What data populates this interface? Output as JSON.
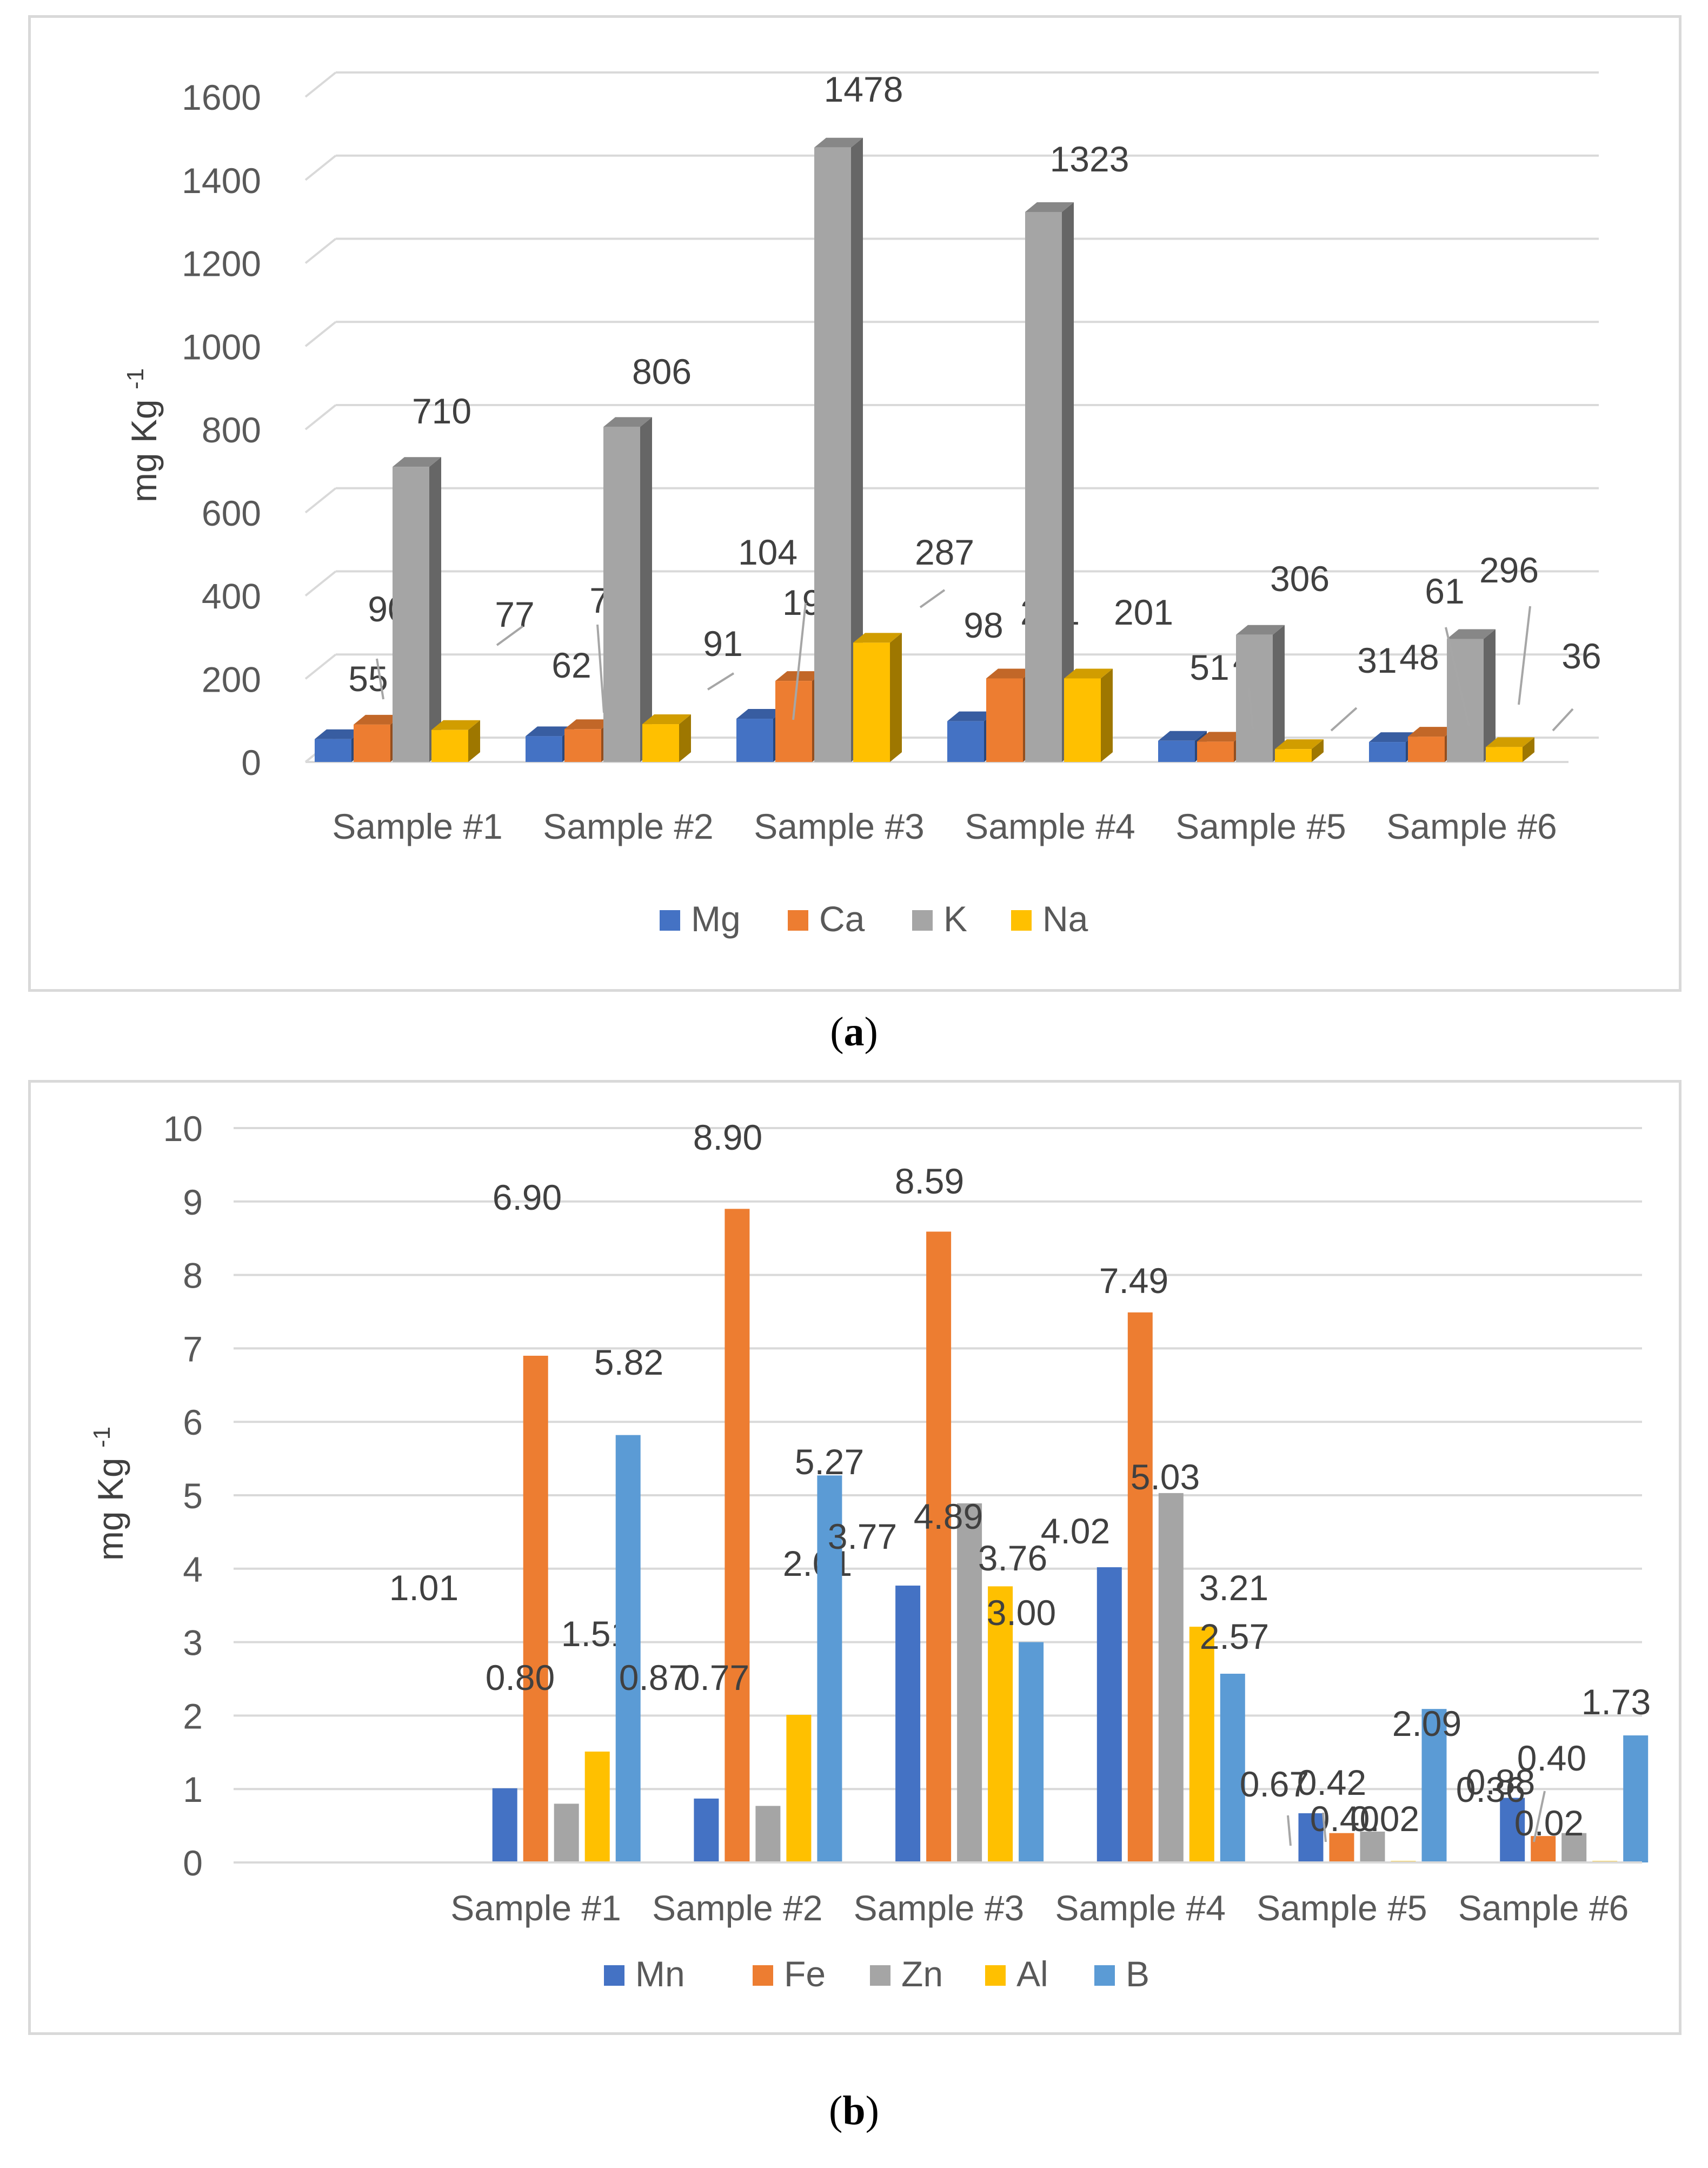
{
  "captions": {
    "a": "a",
    "b": "b"
  },
  "chart_data": [
    {
      "type": "bar",
      "style": "3d-clustered-column",
      "title": "",
      "xlabel": "",
      "ylabel": "mg Kg",
      "ylabel_sup": "-1",
      "ylim": [
        0,
        1600
      ],
      "yticks": [
        0,
        200,
        400,
        600,
        800,
        1000,
        1200,
        1400,
        1600
      ],
      "grid": true,
      "legend_position": "bottom",
      "categories": [
        "Sample #1",
        "Sample #2",
        "Sample #3",
        "Sample #4",
        "Sample #5",
        "Sample #6"
      ],
      "series": [
        {
          "name": "Mg",
          "color": "#4472c4",
          "values": [
            55,
            62,
            104,
            98,
            51,
            48
          ]
        },
        {
          "name": "Ca",
          "color": "#ed7d31",
          "values": [
            90,
            79,
            195,
            201,
            49,
            61
          ]
        },
        {
          "name": "K",
          "color": "#a5a5a5",
          "values": [
            710,
            806,
            1478,
            1323,
            306,
            296
          ]
        },
        {
          "name": "Na",
          "color": "#ffc000",
          "values": [
            77,
            91,
            287,
            201,
            31,
            36
          ]
        }
      ],
      "data_labels": [
        [
          "55",
          "62",
          "104",
          "98",
          "51",
          "48"
        ],
        [
          "90",
          "79",
          "195",
          "201",
          "49",
          "61"
        ],
        [
          "710",
          "806",
          "1478",
          "1323",
          "306",
          "296"
        ],
        [
          "77",
          "91",
          "287",
          "201",
          "31",
          "36"
        ]
      ]
    },
    {
      "type": "bar",
      "style": "clustered-column",
      "title": "",
      "xlabel": "",
      "ylabel": "mg Kg",
      "ylabel_sup": "-1",
      "ylim": [
        0,
        10
      ],
      "yticks": [
        0,
        1,
        2,
        3,
        4,
        5,
        6,
        7,
        8,
        9,
        10
      ],
      "grid": true,
      "legend_position": "bottom",
      "categories": [
        "",
        "Sample #1",
        "Sample #2",
        "Sample #3",
        "Sample #4",
        "Sample #5",
        "Sample #6"
      ],
      "series": [
        {
          "name": "Mn",
          "color": "#4472c4",
          "values": [
            null,
            1.01,
            0.87,
            3.77,
            4.02,
            0.67,
            0.88
          ]
        },
        {
          "name": "Fe",
          "color": "#ed7d31",
          "values": [
            null,
            6.9,
            8.9,
            8.59,
            7.49,
            0.4,
            0.36
          ]
        },
        {
          "name": "Zn",
          "color": "#a5a5a5",
          "values": [
            null,
            0.8,
            0.77,
            4.89,
            5.03,
            0.42,
            0.4
          ]
        },
        {
          "name": "Al",
          "color": "#ffc000",
          "values": [
            null,
            1.51,
            2.01,
            3.76,
            3.21,
            0.02,
            0.02
          ]
        },
        {
          "name": "B",
          "color": "#5b9bd5",
          "values": [
            null,
            5.82,
            5.27,
            3.0,
            2.57,
            2.09,
            1.73
          ]
        }
      ],
      "data_labels": [
        [
          "",
          "1.01",
          "0.87",
          "3.77",
          "4.02",
          "0.67",
          "0.88"
        ],
        [
          "",
          "6.90",
          "8.90",
          "8.59",
          "7.49",
          "0.40",
          "0.36"
        ],
        [
          "",
          "0.80",
          "0.77",
          "4.89",
          "5.03",
          "0.42",
          "0.40"
        ],
        [
          "",
          "1.51",
          "2.01",
          "3.76",
          "3.21",
          "0.02",
          "0.02"
        ],
        [
          "",
          "5.82",
          "5.27",
          "3.00",
          "2.57",
          "2.09",
          "1.73"
        ]
      ]
    }
  ]
}
